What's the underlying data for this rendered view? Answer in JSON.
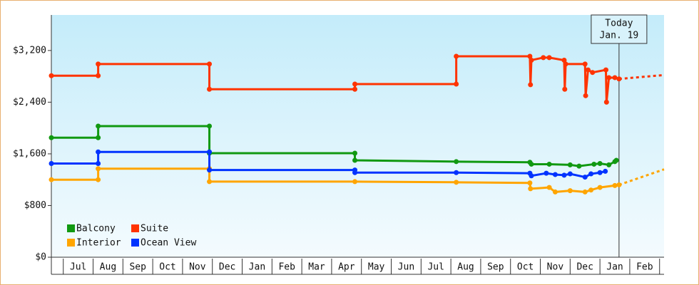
{
  "chart_data": {
    "type": "line",
    "ylim": [
      0,
      3750
    ],
    "yticks": [
      {
        "value": 0,
        "label": "$0"
      },
      {
        "value": 800,
        "label": "$800"
      },
      {
        "value": 1600,
        "label": "$1,600"
      },
      {
        "value": 2400,
        "label": "$2,400"
      },
      {
        "value": 3200,
        "label": "$3,200"
      }
    ],
    "xlim": [
      -0.4,
      20.15
    ],
    "xticks": [
      {
        "value": 0.5,
        "label": "Jul"
      },
      {
        "value": 1.5,
        "label": "Aug"
      },
      {
        "value": 2.5,
        "label": "Sep"
      },
      {
        "value": 3.5,
        "label": "Oct"
      },
      {
        "value": 4.5,
        "label": "Nov"
      },
      {
        "value": 5.5,
        "label": "Dec"
      },
      {
        "value": 6.5,
        "label": "Jan"
      },
      {
        "value": 7.5,
        "label": "Feb"
      },
      {
        "value": 8.5,
        "label": "Mar"
      },
      {
        "value": 9.5,
        "label": "Apr"
      },
      {
        "value": 10.5,
        "label": "May"
      },
      {
        "value": 11.5,
        "label": "Jun"
      },
      {
        "value": 12.5,
        "label": "Jul"
      },
      {
        "value": 13.5,
        "label": "Aug"
      },
      {
        "value": 14.5,
        "label": "Sep"
      },
      {
        "value": 15.5,
        "label": "Oct"
      },
      {
        "value": 16.5,
        "label": "Nov"
      },
      {
        "value": 17.5,
        "label": "Dec"
      },
      {
        "value": 18.5,
        "label": "Jan"
      },
      {
        "value": 19.5,
        "label": "Feb"
      }
    ],
    "grid": false,
    "legend": "bottom-left",
    "today": {
      "label": "Today",
      "date": "Jan. 19",
      "x": 18.64
    },
    "series": [
      {
        "name": "Balcony",
        "color": "#119911",
        "x": [
          -0.4,
          1.17,
          1.17,
          4.9,
          4.9,
          9.78,
          9.78,
          13.18,
          15.65,
          15.7,
          16.3,
          17.0,
          17.3,
          17.8,
          18.0,
          18.3,
          18.5,
          18.55
        ],
        "values": [
          1850,
          1850,
          2030,
          2030,
          1610,
          1610,
          1500,
          1480,
          1470,
          1440,
          1440,
          1430,
          1410,
          1440,
          1450,
          1430,
          1480,
          1500
        ]
      },
      {
        "name": "Suite",
        "color": "#ff3300",
        "x": [
          -0.4,
          1.17,
          1.17,
          4.9,
          4.9,
          9.78,
          9.78,
          13.18,
          13.18,
          15.65,
          15.67,
          15.7,
          16.1,
          16.3,
          16.8,
          16.82,
          16.85,
          17.5,
          17.52,
          17.6,
          17.75,
          18.2,
          18.22,
          18.3,
          18.5,
          18.64
        ],
        "values": [
          2810,
          2810,
          2990,
          2990,
          2600,
          2600,
          2680,
          2680,
          3110,
          3110,
          2670,
          3050,
          3090,
          3090,
          3050,
          2600,
          2990,
          2990,
          2500,
          2900,
          2860,
          2900,
          2400,
          2780,
          2780,
          2760
        ],
        "projection": {
          "x": [
            18.64,
            20.15
          ],
          "values": [
            2760,
            2820
          ]
        }
      },
      {
        "name": "Interior",
        "color": "#ffa500",
        "x": [
          -0.4,
          1.17,
          1.17,
          4.9,
          4.9,
          9.78,
          13.18,
          15.65,
          15.67,
          16.3,
          16.5,
          17.0,
          17.5,
          17.7,
          18.0,
          18.5,
          18.64
        ],
        "values": [
          1200,
          1200,
          1370,
          1370,
          1170,
          1170,
          1160,
          1150,
          1060,
          1080,
          1010,
          1030,
          1010,
          1040,
          1080,
          1110,
          1120
        ],
        "projection": {
          "x": [
            18.64,
            20.15
          ],
          "values": [
            1120,
            1360
          ]
        }
      },
      {
        "name": "Ocean View",
        "color": "#0033ff",
        "x": [
          -0.4,
          1.17,
          1.17,
          4.9,
          4.9,
          9.78,
          9.78,
          13.18,
          15.65,
          15.7,
          16.2,
          16.5,
          16.8,
          17.0,
          17.5,
          17.7,
          18.0,
          18.18
        ],
        "values": [
          1450,
          1450,
          1630,
          1630,
          1350,
          1350,
          1310,
          1310,
          1300,
          1260,
          1300,
          1280,
          1270,
          1290,
          1240,
          1290,
          1310,
          1330
        ]
      }
    ]
  }
}
